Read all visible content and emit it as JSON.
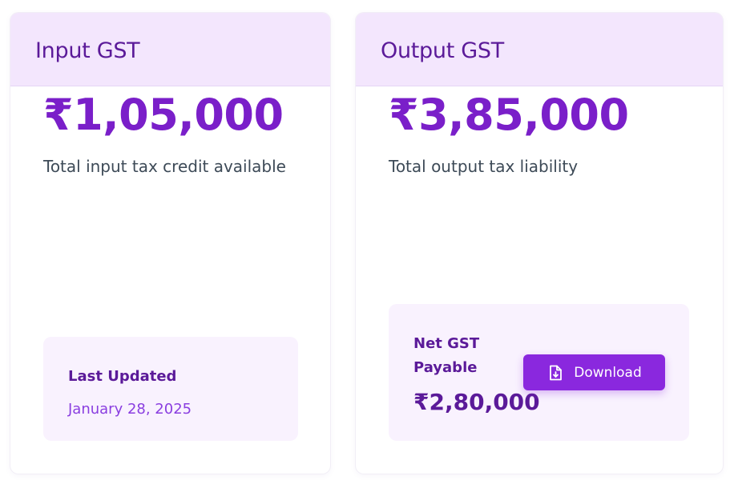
{
  "input_card": {
    "title": "Input GST",
    "amount": "₹1,05,000",
    "description": "Total input tax credit available",
    "last_updated_label": "Last Updated",
    "last_updated_date": "January 28, 2025"
  },
  "output_card": {
    "title": "Output GST",
    "amount": "₹3,85,000",
    "description": "Total output tax liability",
    "net_label": "Net GST Payable",
    "net_amount": "₹2,80,000",
    "download_label": "Download",
    "download_icon": "file-download-icon"
  },
  "colors": {
    "header_bg": "#f3e6fd",
    "title": "#5b1a99",
    "amount": "#7a1fc9",
    "button": "#8a28de",
    "date": "#8a3ee0"
  }
}
